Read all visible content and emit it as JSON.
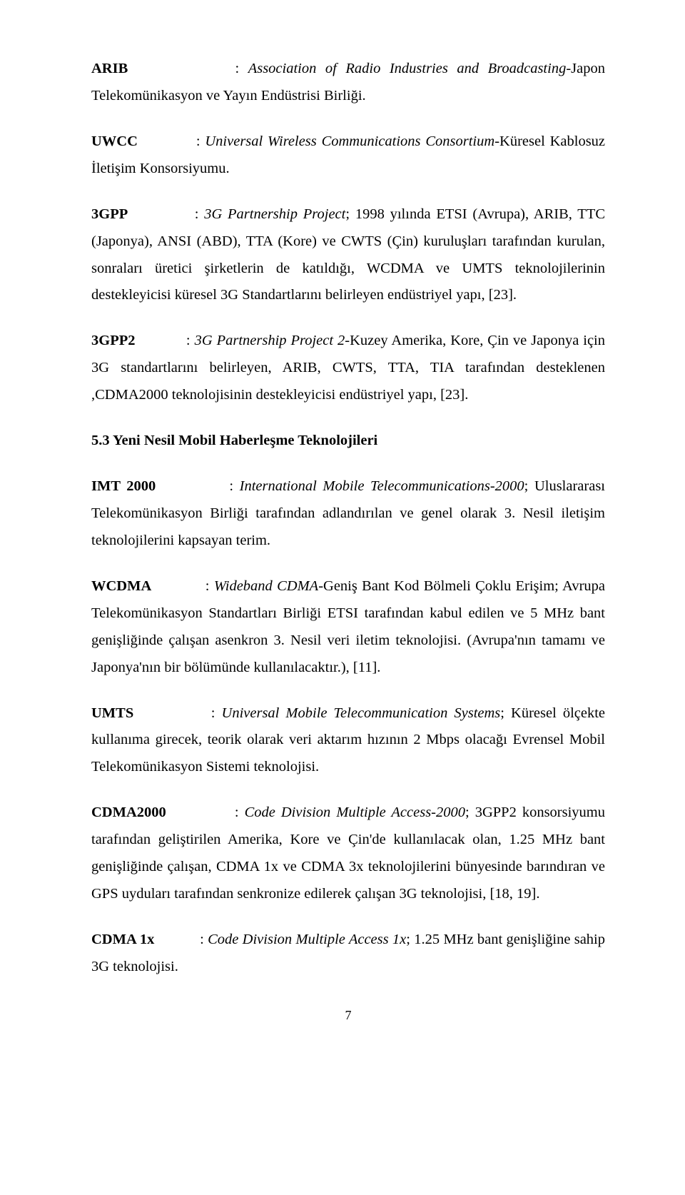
{
  "paragraphs": {
    "p1": {
      "term": "ARIB",
      "def_italic": "Association of Radio Industries and Broadcasting",
      "def_rest": "-Japon Telekomünikasyon ve Yayın Endüstrisi Birliği."
    },
    "p2": {
      "term": "UWCC",
      "def_italic": "Universal Wireless Communications Consortium",
      "def_rest": "-Küresel Kablosuz İletişim Konsorsiyumu."
    },
    "p3": {
      "term": "3GPP",
      "def_italic": "3G Partnership Project",
      "def_rest": "; 1998 yılında ETSI (Avrupa), ARIB, TTC (Japonya), ANSI (ABD), TTA (Kore) ve CWTS (Çin) kuruluşları tarafından kurulan, sonraları üretici şirketlerin de katıldığı, WCDMA ve UMTS teknolojilerinin destekleyicisi küresel 3G Standartlarını belirleyen endüstriyel yapı, [23]."
    },
    "p4": {
      "term": "3GPP2",
      "def_italic": "3G Partnership Project 2",
      "def_rest": "-Kuzey Amerika, Kore, Çin ve Japonya için 3G standartlarını belirleyen, ARIB, CWTS, TTA, TIA tarafından desteklenen ,CDMA2000 teknolojisinin destekleyicisi endüstriyel yapı, [23]."
    },
    "heading": "5.3 Yeni Nesil Mobil Haberleşme Teknolojileri",
    "p5": {
      "term": "IMT 2000",
      "def_italic": "International Mobile Telecommunications-2000",
      "def_rest": "; Uluslararası Telekomünikasyon Birliği tarafından adlandırılan ve genel olarak 3. Nesil iletişim teknolojilerini kapsayan terim."
    },
    "p6": {
      "term": "WCDMA",
      "def_italic": "Wideband CDMA",
      "def_rest": "-Geniş Bant Kod Bölmeli Çoklu Erişim; Avrupa Telekomünikasyon Standartları Birliği ETSI tarafından kabul edilen ve 5 MHz bant genişliğinde çalışan asenkron 3. Nesil veri iletim teknolojisi. (Avrupa'nın tamamı ve Japonya'nın bir bölümünde kullanılacaktır.), [11]."
    },
    "p7": {
      "term": "UMTS",
      "def_italic": "Universal Mobile Telecommunication Systems",
      "def_rest": "; Küresel ölçekte kullanıma girecek, teorik olarak veri aktarım hızının 2 Mbps olacağı Evrensel Mobil Telekomünikasyon Sistemi teknolojisi."
    },
    "p8": {
      "term": "CDMA2000",
      "def_italic": "Code Division Multiple Access-2000",
      "def_rest": "; 3GPP2 konsorsiyumu tarafından geliştirilen Amerika, Kore ve Çin'de kullanılacak olan, 1.25 MHz bant genişliğinde çalışan, CDMA 1x ve CDMA 3x teknolojilerini bünyesinde barındıran ve GPS uyduları tarafından senkronize edilerek çalışan 3G teknolojisi, [18, 19]."
    },
    "p9": {
      "term": "CDMA 1x",
      "def_italic": "Code Division Multiple Access 1x",
      "def_rest": "; 1.25 MHz bant genişliğine sahip 3G teknolojisi."
    }
  },
  "page_number": "7",
  "sep_colon": " : ",
  "sep_space": "           "
}
